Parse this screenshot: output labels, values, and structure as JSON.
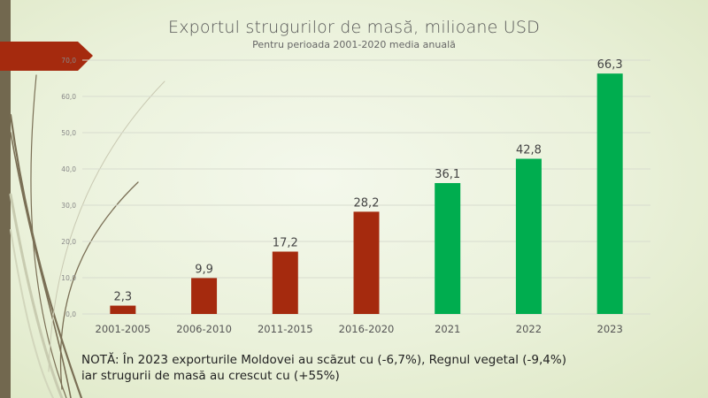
{
  "chart_data": {
    "type": "bar",
    "title": "Exportul strugurilor de masă, milioane USD",
    "subtitle": "Pentru perioada 2001-2020 media anuală",
    "xlabel": "",
    "ylabel": "",
    "categories": [
      "2001-2005",
      "2006-2010",
      "2011-2015",
      "2016-2020",
      "2021",
      "2022",
      "2023"
    ],
    "values": [
      2.3,
      9.9,
      17.2,
      28.2,
      36.1,
      42.8,
      66.3
    ],
    "value_labels": [
      "2,3",
      "9,9",
      "17,2",
      "28,2",
      "36,1",
      "42,8",
      "66,3"
    ],
    "bar_colors": [
      "#a52a0e",
      "#a52a0e",
      "#a52a0e",
      "#a52a0e",
      "#00ad4f",
      "#00ad4f",
      "#00ad4f"
    ],
    "ylim": [
      0,
      70
    ],
    "yticks": [
      0,
      10,
      20,
      30,
      40,
      50,
      60,
      70
    ],
    "ytick_labels": [
      "0,0",
      "10,0",
      "20,0",
      "30,0",
      "40,0",
      "50,0",
      "60,0",
      "70,0"
    ],
    "grid": true,
    "legend": "none"
  },
  "note": {
    "line1": "NOTĂ: În 2023 exporturile Moldovei au scăzut cu (-6,7%), Regnul vegetal (-9,4%)",
    "line2": "iar strugurii de masă au crescut cu (+55%)"
  },
  "colors": {
    "accent_red": "#a52a0e",
    "accent_green": "#00ad4f",
    "side_strip": "#72684f"
  }
}
